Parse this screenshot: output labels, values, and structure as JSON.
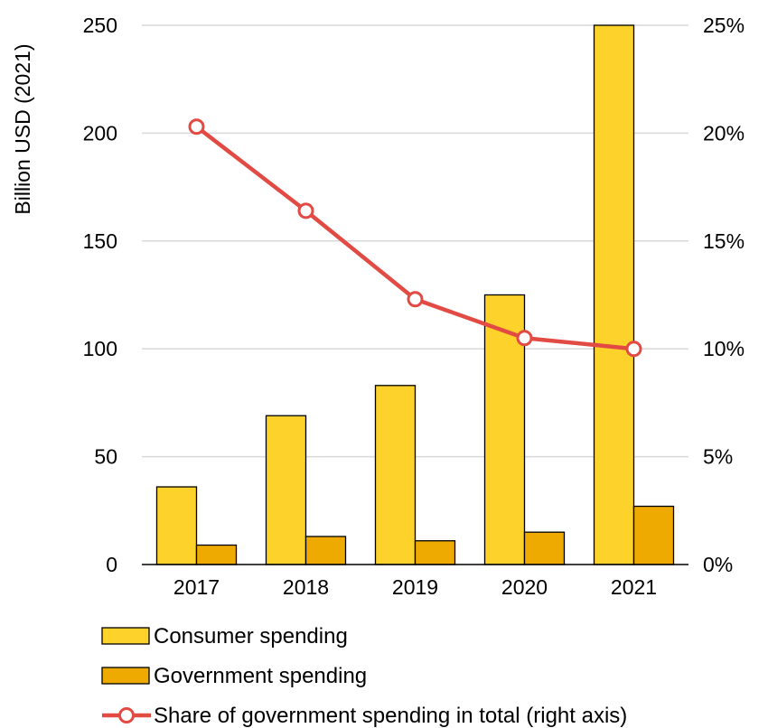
{
  "chart_data": {
    "type": "bar",
    "categories": [
      "2017",
      "2018",
      "2019",
      "2020",
      "2021"
    ],
    "series": [
      {
        "name": "Consumer spending",
        "type": "bar",
        "axis": "left",
        "color": "#FDD22A",
        "values": [
          36,
          69,
          83,
          125,
          250
        ]
      },
      {
        "name": "Government spending",
        "type": "bar",
        "axis": "left",
        "color": "#EEAA00",
        "values": [
          9,
          13,
          11,
          15,
          27
        ]
      },
      {
        "name": "Share of government spending in total (right axis)",
        "type": "line",
        "axis": "right",
        "color": "#E24A44",
        "values": [
          20.3,
          16.4,
          12.3,
          10.5,
          10.0
        ]
      }
    ],
    "ylabel": "Billion USD (2021)",
    "ylim": [
      0,
      250
    ],
    "yticks": [
      "0",
      "50",
      "100",
      "150",
      "200",
      "250"
    ],
    "y2lim": [
      0,
      25
    ],
    "y2ticks": [
      "0%",
      "5%",
      "10%",
      "15%",
      "20%",
      "25%"
    ],
    "grid": true,
    "legend_position": "bottom-left"
  }
}
